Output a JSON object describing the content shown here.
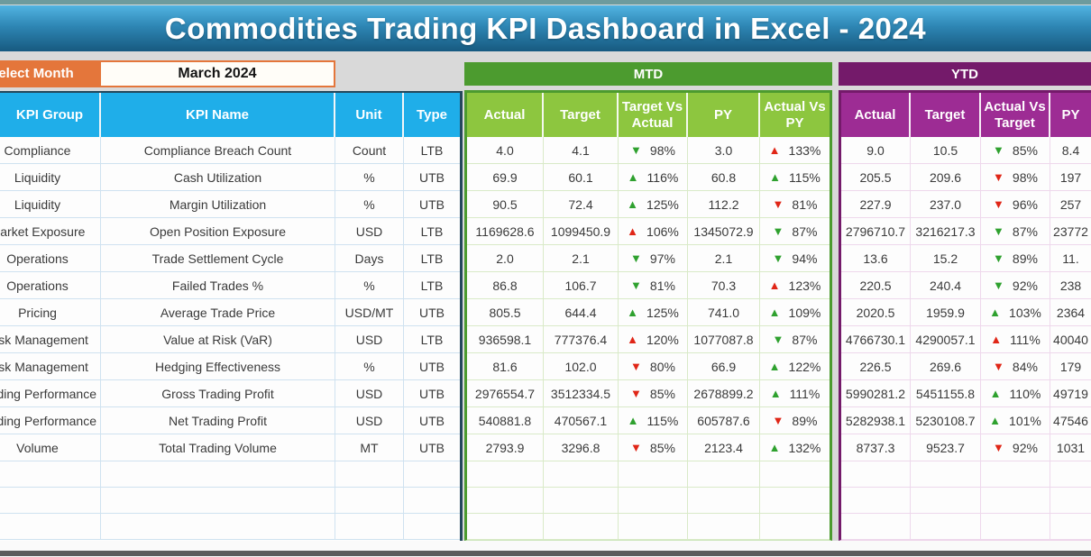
{
  "title": "Commodities Trading KPI Dashboard in Excel - 2024",
  "controls": {
    "select_month_label": "Select Month",
    "selected_month": "March 2024"
  },
  "sections": {
    "mtd_label": "MTD",
    "ytd_label": "YTD"
  },
  "colors": {
    "banner_blue_top": "#52b4e2",
    "banner_blue_bottom": "#175a80",
    "orange": "#e4763b",
    "header_cyan": "#1faee9",
    "mtd_dark_green": "#4c9b2f",
    "mtd_light_green": "#8dc63f",
    "ytd_dark_purple": "#741a6a",
    "ytd_light_purple": "#9d2c94",
    "arrow_green": "#2fa12f",
    "arrow_red": "#e02617",
    "sheet_gray": "#d9d9d9"
  },
  "table": {
    "info_headers": [
      "KPI Group",
      "KPI Name",
      "Unit",
      "Type"
    ],
    "mtd_headers": [
      "Actual",
      "Target",
      "Target Vs Actual",
      "PY",
      "Actual Vs PY"
    ],
    "ytd_headers": [
      "Actual",
      "Target",
      "Actual Vs Target",
      "PY"
    ],
    "rows": [
      {
        "group": "Compliance",
        "name": "Compliance Breach Count",
        "unit": "Count",
        "type": "LTB",
        "mtd": {
          "actual": "4.0",
          "target": "4.1",
          "tva": {
            "dir": "down",
            "color": "green",
            "value": "98%"
          },
          "py": "3.0",
          "avp": {
            "dir": "up",
            "color": "red",
            "value": "133%"
          }
        },
        "ytd": {
          "actual": "9.0",
          "target": "10.5",
          "avt": {
            "dir": "down",
            "color": "green",
            "value": "85%"
          },
          "py": "8.4"
        }
      },
      {
        "group": "Liquidity",
        "name": "Cash Utilization",
        "unit": "%",
        "type": "UTB",
        "mtd": {
          "actual": "69.9",
          "target": "60.1",
          "tva": {
            "dir": "up",
            "color": "green",
            "value": "116%"
          },
          "py": "60.8",
          "avp": {
            "dir": "up",
            "color": "green",
            "value": "115%"
          }
        },
        "ytd": {
          "actual": "205.5",
          "target": "209.6",
          "avt": {
            "dir": "down",
            "color": "red",
            "value": "98%"
          },
          "py": "197"
        }
      },
      {
        "group": "Liquidity",
        "name": "Margin Utilization",
        "unit": "%",
        "type": "UTB",
        "mtd": {
          "actual": "90.5",
          "target": "72.4",
          "tva": {
            "dir": "up",
            "color": "green",
            "value": "125%"
          },
          "py": "112.2",
          "avp": {
            "dir": "down",
            "color": "red",
            "value": "81%"
          }
        },
        "ytd": {
          "actual": "227.9",
          "target": "237.0",
          "avt": {
            "dir": "down",
            "color": "red",
            "value": "96%"
          },
          "py": "257"
        }
      },
      {
        "group": "Market Exposure",
        "name": "Open Position Exposure",
        "unit": "USD",
        "type": "LTB",
        "mtd": {
          "actual": "1169628.6",
          "target": "1099450.9",
          "tva": {
            "dir": "up",
            "color": "red",
            "value": "106%"
          },
          "py": "1345072.9",
          "avp": {
            "dir": "down",
            "color": "green",
            "value": "87%"
          }
        },
        "ytd": {
          "actual": "2796710.7",
          "target": "3216217.3",
          "avt": {
            "dir": "down",
            "color": "green",
            "value": "87%"
          },
          "py": "23772"
        }
      },
      {
        "group": "Operations",
        "name": "Trade Settlement Cycle",
        "unit": "Days",
        "type": "LTB",
        "mtd": {
          "actual": "2.0",
          "target": "2.1",
          "tva": {
            "dir": "down",
            "color": "green",
            "value": "97%"
          },
          "py": "2.1",
          "avp": {
            "dir": "down",
            "color": "green",
            "value": "94%"
          }
        },
        "ytd": {
          "actual": "13.6",
          "target": "15.2",
          "avt": {
            "dir": "down",
            "color": "green",
            "value": "89%"
          },
          "py": "11."
        }
      },
      {
        "group": "Operations",
        "name": "Failed Trades %",
        "unit": "%",
        "type": "LTB",
        "mtd": {
          "actual": "86.8",
          "target": "106.7",
          "tva": {
            "dir": "down",
            "color": "green",
            "value": "81%"
          },
          "py": "70.3",
          "avp": {
            "dir": "up",
            "color": "red",
            "value": "123%"
          }
        },
        "ytd": {
          "actual": "220.5",
          "target": "240.4",
          "avt": {
            "dir": "down",
            "color": "green",
            "value": "92%"
          },
          "py": "238"
        }
      },
      {
        "group": "Pricing",
        "name": "Average Trade Price",
        "unit": "USD/MT",
        "type": "UTB",
        "mtd": {
          "actual": "805.5",
          "target": "644.4",
          "tva": {
            "dir": "up",
            "color": "green",
            "value": "125%"
          },
          "py": "741.0",
          "avp": {
            "dir": "up",
            "color": "green",
            "value": "109%"
          }
        },
        "ytd": {
          "actual": "2020.5",
          "target": "1959.9",
          "avt": {
            "dir": "up",
            "color": "green",
            "value": "103%"
          },
          "py": "2364"
        }
      },
      {
        "group": "Risk Management",
        "name": "Value at Risk (VaR)",
        "unit": "USD",
        "type": "LTB",
        "mtd": {
          "actual": "936598.1",
          "target": "777376.4",
          "tva": {
            "dir": "up",
            "color": "red",
            "value": "120%"
          },
          "py": "1077087.8",
          "avp": {
            "dir": "down",
            "color": "green",
            "value": "87%"
          }
        },
        "ytd": {
          "actual": "4766730.1",
          "target": "4290057.1",
          "avt": {
            "dir": "up",
            "color": "red",
            "value": "111%"
          },
          "py": "40040"
        }
      },
      {
        "group": "Risk Management",
        "name": "Hedging Effectiveness",
        "unit": "%",
        "type": "UTB",
        "mtd": {
          "actual": "81.6",
          "target": "102.0",
          "tva": {
            "dir": "down",
            "color": "red",
            "value": "80%"
          },
          "py": "66.9",
          "avp": {
            "dir": "up",
            "color": "green",
            "value": "122%"
          }
        },
        "ytd": {
          "actual": "226.5",
          "target": "269.6",
          "avt": {
            "dir": "down",
            "color": "red",
            "value": "84%"
          },
          "py": "179"
        }
      },
      {
        "group": "Trading Performance",
        "name": "Gross Trading Profit",
        "unit": "USD",
        "type": "UTB",
        "mtd": {
          "actual": "2976554.7",
          "target": "3512334.5",
          "tva": {
            "dir": "down",
            "color": "red",
            "value": "85%"
          },
          "py": "2678899.2",
          "avp": {
            "dir": "up",
            "color": "green",
            "value": "111%"
          }
        },
        "ytd": {
          "actual": "5990281.2",
          "target": "5451155.8",
          "avt": {
            "dir": "up",
            "color": "green",
            "value": "110%"
          },
          "py": "49719"
        }
      },
      {
        "group": "Trading Performance",
        "name": "Net Trading Profit",
        "unit": "USD",
        "type": "UTB",
        "mtd": {
          "actual": "540881.8",
          "target": "470567.1",
          "tva": {
            "dir": "up",
            "color": "green",
            "value": "115%"
          },
          "py": "605787.6",
          "avp": {
            "dir": "down",
            "color": "red",
            "value": "89%"
          }
        },
        "ytd": {
          "actual": "5282938.1",
          "target": "5230108.7",
          "avt": {
            "dir": "up",
            "color": "green",
            "value": "101%"
          },
          "py": "47546"
        }
      },
      {
        "group": "Volume",
        "name": "Total Trading Volume",
        "unit": "MT",
        "type": "UTB",
        "mtd": {
          "actual": "2793.9",
          "target": "3296.8",
          "tva": {
            "dir": "down",
            "color": "red",
            "value": "85%"
          },
          "py": "2123.4",
          "avp": {
            "dir": "up",
            "color": "green",
            "value": "132%"
          }
        },
        "ytd": {
          "actual": "8737.3",
          "target": "9523.7",
          "avt": {
            "dir": "down",
            "color": "red",
            "value": "92%"
          },
          "py": "1031"
        }
      }
    ],
    "empty_row_count": 3
  }
}
